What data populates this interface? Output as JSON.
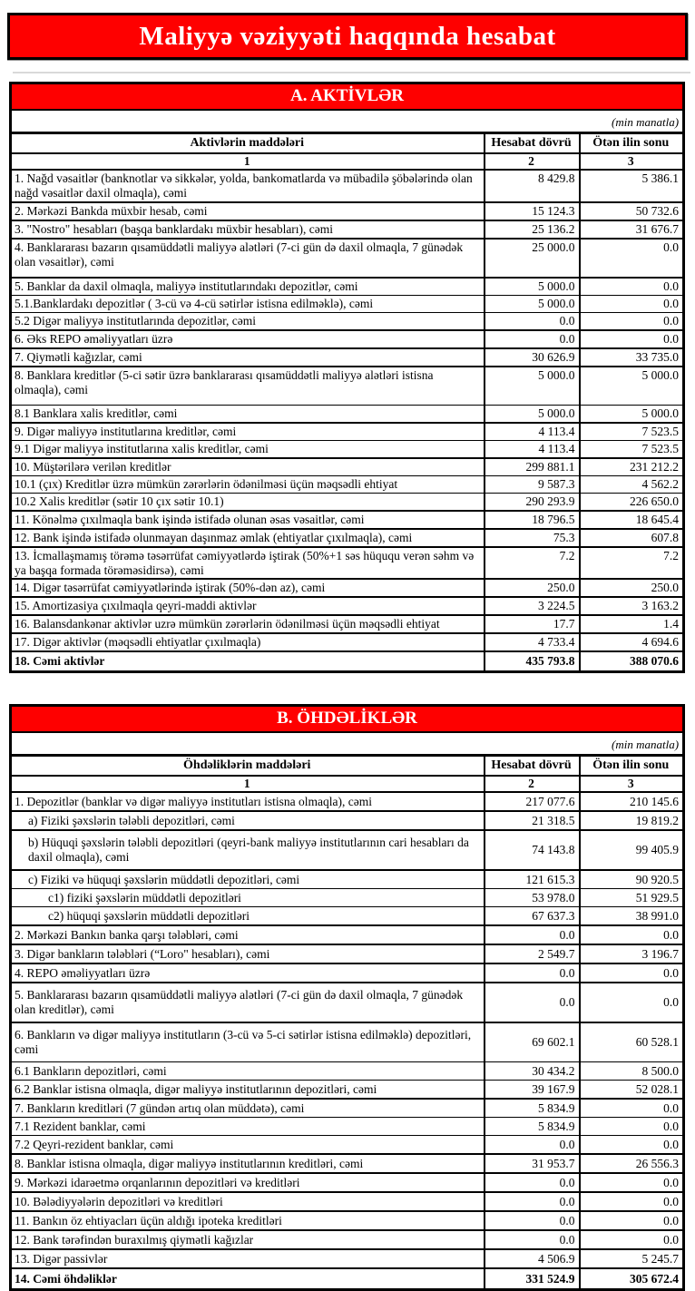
{
  "page": {
    "title": "Maliyyə vəziyyəti haqqında hesabat",
    "colors": {
      "banner_red": "#FE0000",
      "banner_text": "#FFFFFF",
      "border": "#000000"
    }
  },
  "assets": {
    "section_title": "A. AKTİVLƏR",
    "unit_note": "(min manatla)",
    "col_headers": {
      "items": "Aktivlərin  maddələri",
      "current": "Hesabat dövrü",
      "previous": "Ötən ilin sonu"
    },
    "col_numbers": [
      "1",
      "2",
      "3"
    ],
    "rows": [
      {
        "level": "main",
        "tall": false,
        "label": "1. Nağd vəsaitlər (banknotlar və sikkələr, yolda, bankomatlarda və mübadilə şöbələrində olan nağd vəsaitlər daxil olmaqla), cəmi",
        "current": "8 429.8",
        "previous": "5 386.1"
      },
      {
        "level": "main",
        "tall": false,
        "label": "2. Mərkəzi Bankda müxbir hesab, cəmi",
        "current": "15 124.3",
        "previous": "50 732.6"
      },
      {
        "level": "main",
        "tall": false,
        "label": "3. \"Nostro\" hesabları (başqa banklardakı müxbir hesabları), cəmi",
        "current": "25 136.2",
        "previous": "31 676.7"
      },
      {
        "level": "main",
        "tall": true,
        "label": "4. Banklararası bazarın qısamüddətli maliyyə alətləri (7-ci gün də daxil olmaqla, 7 günədək olan vəsaitlər), cəmi",
        "current": "25 000.0",
        "previous": "0.0"
      },
      {
        "level": "main",
        "tall": false,
        "label": "5. Banklar da daxil olmaqla, maliyyə institutlarındakı depozitlər, cəmi",
        "current": "5 000.0",
        "previous": "0.0"
      },
      {
        "level": "sub",
        "tall": false,
        "label": "5.1.Banklardakı depozitlər ( 3-cü və 4-cü sətirlər istisna edilməklə), cəmi",
        "current": "5 000.0",
        "previous": "0.0"
      },
      {
        "level": "sub",
        "tall": false,
        "label": "5.2 Digər maliyyə institutlarında depozitlər, cəmi",
        "current": "0.0",
        "previous": "0.0"
      },
      {
        "level": "main",
        "tall": false,
        "label": "6. Əks REPO əməliyyatları üzrə",
        "current": "0.0",
        "previous": "0.0"
      },
      {
        "level": "main",
        "tall": false,
        "label": "7. Qiymətli kağızlar, cəmi",
        "current": "30 626.9",
        "previous": "33 735.0"
      },
      {
        "level": "main",
        "tall": true,
        "label": "8. Banklara kreditlər (5-ci sətir üzrə banklararası qısamüddətli maliyyə alətləri istisna olmaqla), cəmi",
        "current": "5 000.0",
        "previous": "5 000.0"
      },
      {
        "level": "sub",
        "tall": false,
        "label": "8.1 Banklara xalis kreditlər, cəmi",
        "current": "5 000.0",
        "previous": "5 000.0"
      },
      {
        "level": "main",
        "tall": false,
        "label": "9. Digər maliyyə institutlarına kreditlər, cəmi",
        "current": "4 113.4",
        "previous": "7 523.5"
      },
      {
        "level": "sub",
        "tall": false,
        "label": "9.1 Digər maliyyə institutlarına xalis kreditlər, cəmi",
        "current": "4 113.4",
        "previous": "7 523.5"
      },
      {
        "level": "main",
        "tall": false,
        "label": "10. Müştərilərə verilən kreditlər",
        "current": "299 881.1",
        "previous": "231 212.2"
      },
      {
        "level": "sub",
        "tall": false,
        "label": "10.1 (çıx) Kreditlər üzrə mümkün zərərlərin ödənilməsi üçün məqsədli ehtiyat",
        "current": "9 587.3",
        "previous": "4 562.2"
      },
      {
        "level": "sub",
        "tall": false,
        "label": "10.2 Xalis kreditlər (sətir 10 çıx sətir 10.1)",
        "current": "290 293.9",
        "previous": "226 650.0"
      },
      {
        "level": "main",
        "tall": false,
        "label": "11. Könəlmə çıxılmaqla bank işində istifadə olunan əsas vəsaitlər, cəmi",
        "current": "18 796.5",
        "previous": "18 645.4"
      },
      {
        "level": "main",
        "tall": false,
        "label": "12. Bank işində istifadə olunmayan daşınmaz əmlak (ehtiyatlar çıxılmaqla), cəmi",
        "current": "75.3",
        "previous": "607.8"
      },
      {
        "level": "main",
        "tall": false,
        "label": "13. İcmallaşmamış törəmə təsərrüfat cəmiyyətlərdə iştirak (50%+1 səs hüququ verən səhm və ya başqa formada törəməsidirsə), cəmi",
        "current": "7.2",
        "previous": "7.2"
      },
      {
        "level": "main",
        "tall": false,
        "label": "14. Digər təsərrüfat cəmiyyətlərində iştirak (50%-dən az), cəmi",
        "current": "250.0",
        "previous": "250.0"
      },
      {
        "level": "main",
        "tall": false,
        "label": "15. Amortizasiya çıxılmaqla qeyri-maddi aktivlər",
        "current": "3 224.5",
        "previous": "3 163.2"
      },
      {
        "level": "main",
        "tall": false,
        "label": "16. Balansdankənar aktivlər uzrə mümkün zərərlərin ödənilməsi üçün məqsədli ehtiyat",
        "current": "17.7",
        "previous": "1.4"
      },
      {
        "level": "main",
        "tall": false,
        "label": "17. Digər aktivlər (məqsədli ehtiyatlar çıxılmaqla)",
        "current": "4 733.4",
        "previous": "4 694.6"
      },
      {
        "level": "total",
        "tall": false,
        "label": "18. Cəmi aktivlər",
        "current": "435 793.8",
        "previous": "388 070.6"
      }
    ]
  },
  "liabilities": {
    "section_title": "B. ÖHDƏLİKLƏR",
    "unit_note": "(min manatla)",
    "col_headers": {
      "items": "Öhdəliklərin maddələri",
      "current": "Hesabat dövrü",
      "previous": "Ötən ilin sonu"
    },
    "col_numbers": [
      "1",
      "2",
      "3"
    ],
    "rows": [
      {
        "level": "main",
        "tall": false,
        "label": "1. Depozitlər (banklar və digər maliyyə institutları istisna olmaqla), cəmi",
        "current": "217 077.6",
        "previous": "210 145.6"
      },
      {
        "level": "letter",
        "tall": false,
        "label": "a)  Fiziki şəxslərin tələbli depozitləri, cəmi",
        "current": "21 318.5",
        "previous": "19 819.2"
      },
      {
        "level": "letter",
        "tall": true,
        "label": "b) Hüquqi şəxslərin tələbli depozitləri (qeyri-bank maliyyə institutlarının cari hesabları da daxil olmaqla), cəmi",
        "current": "74 143.8",
        "previous": "99 405.9"
      },
      {
        "level": "letter",
        "tall": false,
        "label": "c) Fiziki və hüquqi şəxslərin müddətli depozitləri, cəmi",
        "current": "121 615.3",
        "previous": "90 920.5"
      },
      {
        "level": "subsub",
        "tall": false,
        "label": "c1) fiziki şəxslərin müddətli depozitləri",
        "current": "53 978.0",
        "previous": "51 929.5"
      },
      {
        "level": "subsub",
        "tall": false,
        "label": "c2) hüquqi şəxslərin müddətli depozitləri",
        "current": "67 637.3",
        "previous": "38 991.0"
      },
      {
        "level": "main",
        "tall": false,
        "label": "2. Mərkəzi Bankın banka qarşı tələbləri, cəmi",
        "current": "0.0",
        "previous": "0.0"
      },
      {
        "level": "main",
        "tall": false,
        "label": "3. Digər bankların tələbləri (“Loro\" hesabları), cəmi",
        "current": "2 549.7",
        "previous": "3 196.7"
      },
      {
        "level": "main",
        "tall": false,
        "label": "4. REPO əməliyyatları  üzrə",
        "current": "0.0",
        "previous": "0.0"
      },
      {
        "level": "main",
        "tall": true,
        "label": "5. Banklararası bazarın qısamüddətli maliyyə alətləri (7-ci gün də daxil olmaqla, 7 günədək olan kreditlər), cəmi",
        "current": "0.0",
        "previous": "0.0"
      },
      {
        "level": "main",
        "tall": true,
        "label": "6. Bankların və digər maliyyə institutların (3-cü və 5-ci sətirlər istisna edilməklə) depozitləri, cəmi",
        "current": "69 602.1",
        "previous": "60 528.1"
      },
      {
        "level": "sub",
        "tall": false,
        "label": "6.1  Bankların depozitləri, cəmi",
        "current": "30 434.2",
        "previous": "8 500.0"
      },
      {
        "level": "sub",
        "tall": false,
        "label": "6.2 Banklar istisna olmaqla, digər maliyyə institutlarının depozitləri, cəmi",
        "current": "39 167.9",
        "previous": "52 028.1"
      },
      {
        "level": "main",
        "tall": false,
        "label": "7. Bankların kreditləri (7 gündən artıq olan müddətə), cəmi",
        "current": "5 834.9",
        "previous": "0.0"
      },
      {
        "level": "sub",
        "tall": false,
        "label": "7.1 Rezident banklar, cəmi",
        "current": "5 834.9",
        "previous": "0.0"
      },
      {
        "level": "sub",
        "tall": false,
        "label": "7.2 Qeyri-rezident banklar, cəmi",
        "current": "0.0",
        "previous": "0.0"
      },
      {
        "level": "main",
        "tall": false,
        "label": "8. Banklar istisna olmaqla, digər maliyyə institutlarının kreditləri, cəmi",
        "current": "31 953.7",
        "previous": "26 556.3"
      },
      {
        "level": "main",
        "tall": false,
        "label": "9. Mərkəzi idarəetmə orqanlarının depozitləri və kreditləri",
        "current": "0.0",
        "previous": "0.0"
      },
      {
        "level": "main",
        "tall": false,
        "label": "10. Bələdiyyələrin depozitləri və kreditləri",
        "current": "0.0",
        "previous": "0.0"
      },
      {
        "level": "main",
        "tall": false,
        "label": "11. Bankın öz ehtiyacları üçün aldığı ipoteka kreditləri",
        "current": "0.0",
        "previous": "0.0"
      },
      {
        "level": "main",
        "tall": false,
        "label": "12. Bank tərəfindən buraxılmış qiymətli kağızlar",
        "current": "0.0",
        "previous": "0.0"
      },
      {
        "level": "main",
        "tall": false,
        "label": "13. Digər passivlər",
        "current": "4 506.9",
        "previous": "5 245.7"
      },
      {
        "level": "total",
        "tall": false,
        "label": "14. Cəmi öhdəliklər",
        "current": "331 524.9",
        "previous": "305 672.4"
      }
    ]
  }
}
